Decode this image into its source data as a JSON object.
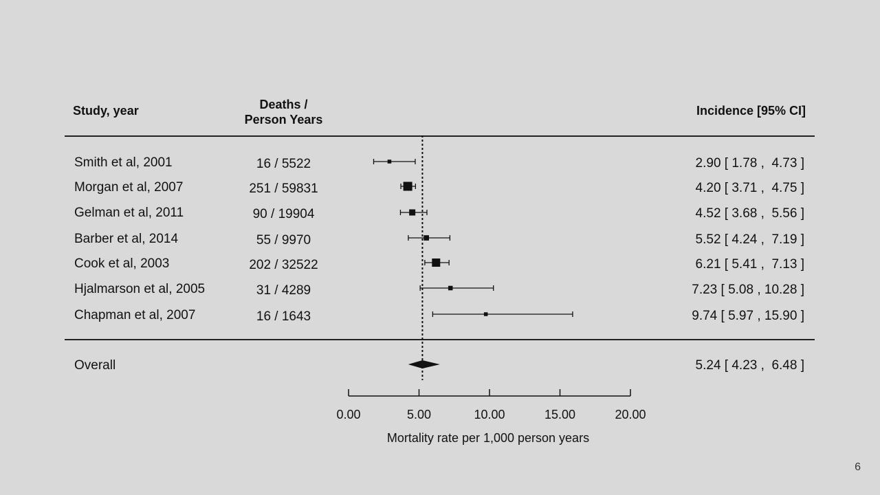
{
  "header": {
    "study": "Study, year",
    "deaths_line1": "Deaths /",
    "deaths_line2": "Person Years",
    "incidence": "Incidence [95% CI]"
  },
  "rows": [
    {
      "study": "Smith et al, 2001",
      "events": "16 / 5522",
      "estimate": "2.90 [ 1.78 ,  4.73 ]"
    },
    {
      "study": "Morgan et al, 2007",
      "events": "251 / 59831",
      "estimate": "4.20 [ 3.71 ,  4.75 ]"
    },
    {
      "study": "Gelman et al, 2011",
      "events": "90 / 19904",
      "estimate": "4.52 [ 3.68 ,  5.56 ]"
    },
    {
      "study": "Barber et al, 2014",
      "events": "55 / 9970",
      "estimate": "5.52 [ 4.24 ,  7.19 ]"
    },
    {
      "study": "Cook et al, 2003",
      "events": "202 / 32522",
      "estimate": "6.21 [ 5.41 ,  7.13 ]"
    },
    {
      "study": "Hjalmarson et al, 2005",
      "events": "31 / 4289",
      "estimate": "7.23 [ 5.08 , 10.28 ]"
    },
    {
      "study": "Chapman  et al, 2007",
      "events": "16 / 1643",
      "estimate": "9.74 [ 5.97 , 15.90 ]"
    }
  ],
  "overall": {
    "label": "Overall",
    "estimate": "5.24 [ 4.23 ,  6.48 ]"
  },
  "axis_title": "Mortality rate per 1,000 person years",
  "page_number": "6",
  "chart_data": {
    "type": "forest",
    "xlabel": "Mortality rate per 1,000 person years",
    "xlim": [
      0,
      20
    ],
    "ticks": [
      0,
      5,
      10,
      15,
      20
    ],
    "tick_labels": [
      "0.00",
      "5.00",
      "10.00",
      "15.00",
      "20.00"
    ],
    "reference_line": 5.24,
    "studies": [
      {
        "name": "Smith et al, 2001",
        "estimate": 2.9,
        "lower": 1.78,
        "upper": 4.73,
        "weight": 16
      },
      {
        "name": "Morgan et al, 2007",
        "estimate": 4.2,
        "lower": 3.71,
        "upper": 4.75,
        "weight": 251
      },
      {
        "name": "Gelman et al, 2011",
        "estimate": 4.52,
        "lower": 3.68,
        "upper": 5.56,
        "weight": 90
      },
      {
        "name": "Barber et al, 2014",
        "estimate": 5.52,
        "lower": 4.24,
        "upper": 7.19,
        "weight": 55
      },
      {
        "name": "Cook et al, 2003",
        "estimate": 6.21,
        "lower": 5.41,
        "upper": 7.13,
        "weight": 202
      },
      {
        "name": "Hjalmarson et al, 2005",
        "estimate": 7.23,
        "lower": 5.08,
        "upper": 10.28,
        "weight": 31
      },
      {
        "name": "Chapman  et al, 2007",
        "estimate": 9.74,
        "lower": 5.97,
        "upper": 15.9,
        "weight": 16
      }
    ],
    "overall": {
      "name": "Overall",
      "estimate": 5.24,
      "lower": 4.23,
      "upper": 6.48
    }
  }
}
